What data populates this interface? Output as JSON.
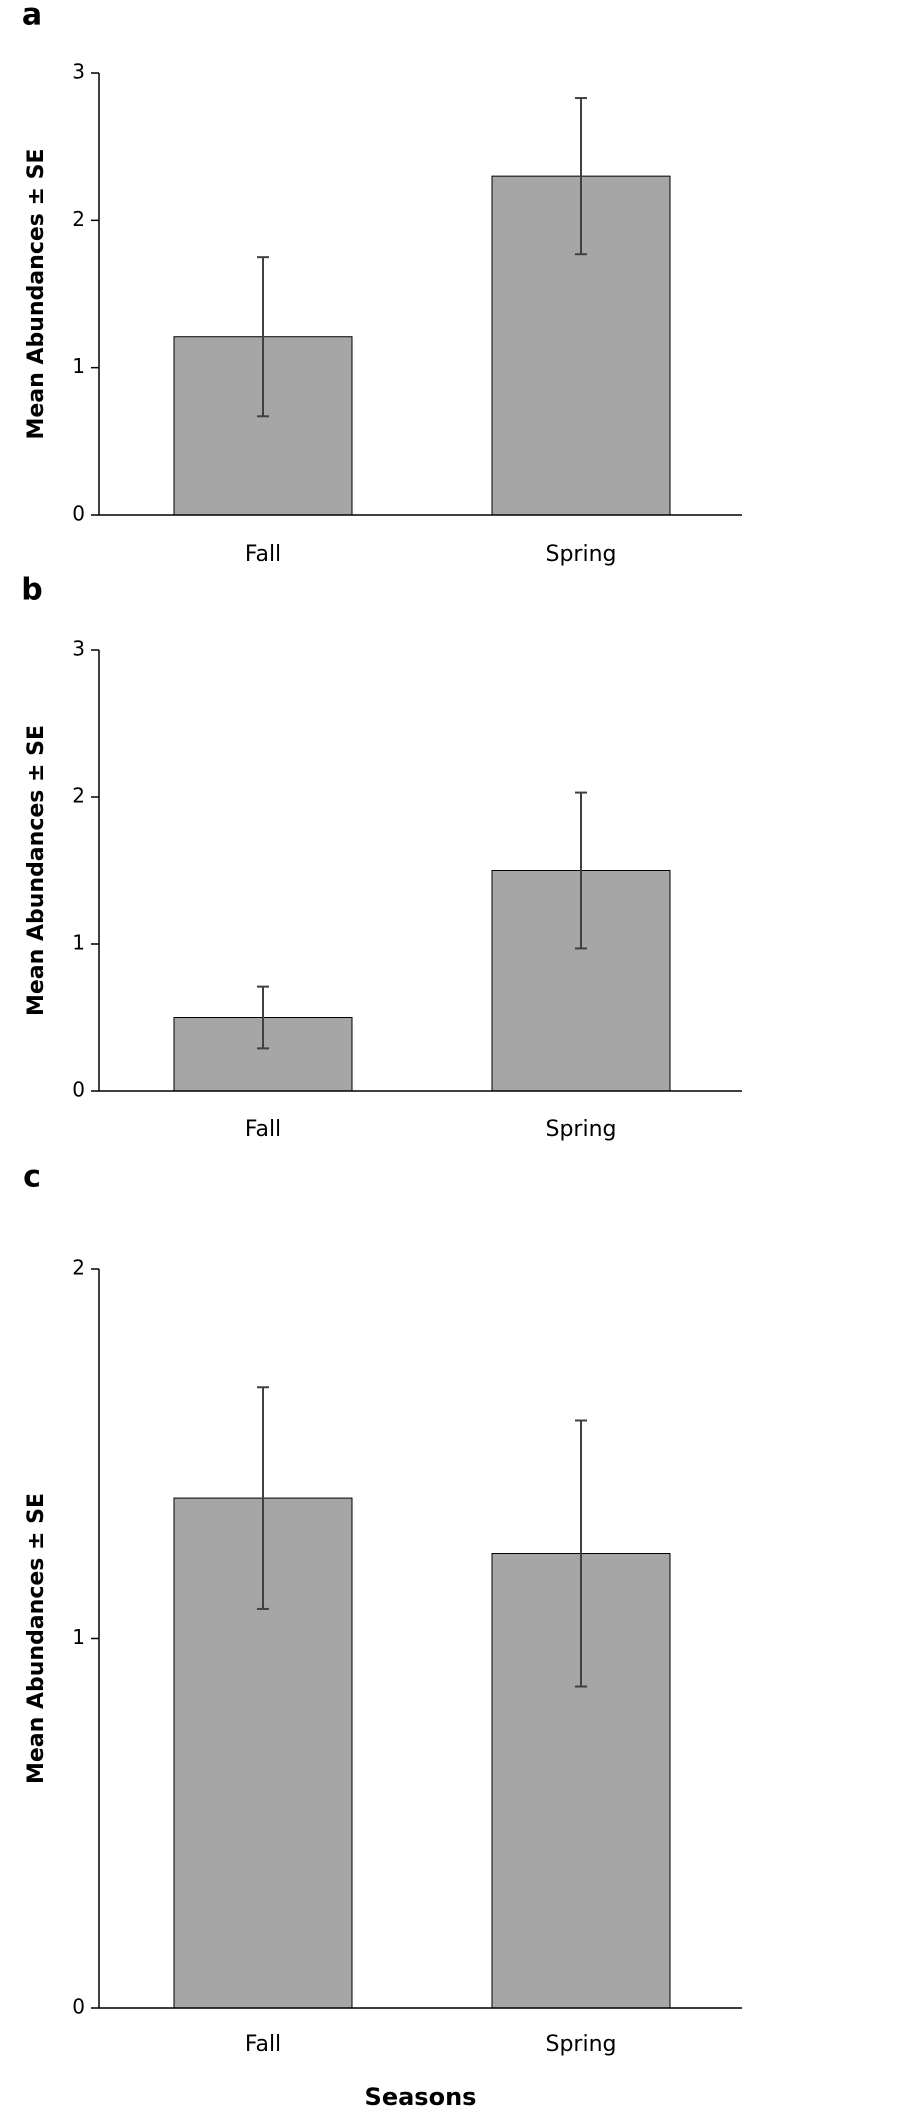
{
  "chart_data": [
    {
      "type": "bar",
      "title": "a",
      "categories": [
        "Fall",
        "Spring"
      ],
      "values": [
        1.21,
        2.3
      ],
      "errors": [
        0.54,
        0.53
      ],
      "color": "#a6a6a6",
      "error_color": "#404040",
      "ylim": [
        0,
        3
      ],
      "yticks": [
        0,
        1,
        2,
        3
      ],
      "y_label": "Mean Abundances ± SE"
    },
    {
      "type": "bar",
      "title": "b",
      "categories": [
        "Fall",
        "Spring"
      ],
      "values": [
        0.5,
        1.5
      ],
      "errors": [
        0.21,
        0.53
      ],
      "color": "#a6a6a6",
      "error_color": "#404040",
      "ylim": [
        0,
        3
      ],
      "yticks": [
        0,
        1,
        2,
        3
      ],
      "y_label": "Mean Abundances ± SE"
    },
    {
      "type": "bar",
      "title": "c",
      "categories": [
        "Fall",
        "Spring"
      ],
      "values": [
        1.38,
        1.23
      ],
      "errors": [
        0.3,
        0.36
      ],
      "color": "#a6a6a6",
      "error_color": "#404040",
      "ylim": [
        0,
        2
      ],
      "yticks": [
        0,
        1,
        2
      ],
      "y_label": "Mean Abundances ± SE",
      "x_label": "Seasons"
    }
  ]
}
